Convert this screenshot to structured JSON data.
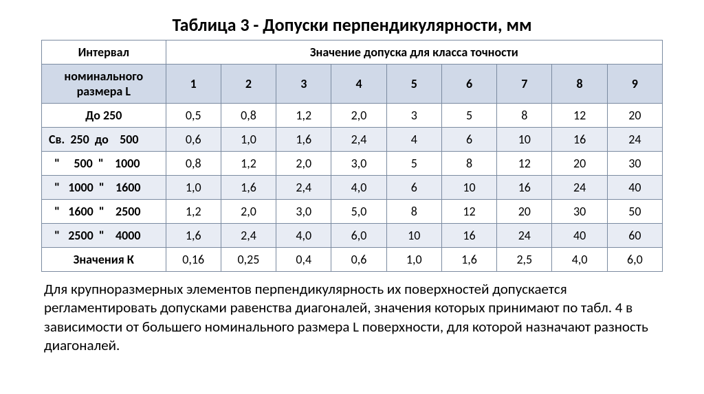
{
  "title": "Таблица 3 - Допуски перпендикулярности, мм",
  "header": {
    "interval": "Интервал",
    "tolerance_span": "Значение допуска для класса точности",
    "nominal_size": "номинального размера L"
  },
  "classes": [
    "1",
    "2",
    "3",
    "4",
    "5",
    "6",
    "7",
    "8",
    "9"
  ],
  "rows": [
    {
      "label": "До   250",
      "vals": [
        "0,5",
        "0,8",
        "1,2",
        "2,0",
        "3",
        "5",
        "8",
        "12",
        "20"
      ],
      "shade": false
    },
    {
      "label": "Св.  250  до    500",
      "vals": [
        "0,6",
        "1,0",
        "1,6",
        "2,4",
        "4",
        "6",
        "10",
        "16",
        "24"
      ],
      "shade": true
    },
    {
      "label": "  \"     500  \"    1000",
      "vals": [
        "0,8",
        "1,2",
        "2,0",
        "3,0",
        "5",
        "8",
        "12",
        "20",
        "30"
      ],
      "shade": false
    },
    {
      "label": "  \"   1000  \"    1600",
      "vals": [
        "1,0",
        "1,6",
        "2,4",
        "4,0",
        "6",
        "10",
        "16",
        "24",
        "40"
      ],
      "shade": true
    },
    {
      "label": "  \"   1600  \"    2500",
      "vals": [
        "1,2",
        "2,0",
        "3,0",
        "5,0",
        "8",
        "12",
        "20",
        "30",
        "50"
      ],
      "shade": false
    },
    {
      "label": "  \"   2500  \"    4000",
      "vals": [
        "1,6",
        "2,4",
        "4,0",
        "6,0",
        "10",
        "16",
        "24",
        "40",
        "60"
      ],
      "shade": true
    }
  ],
  "k_label": "Значения К",
  "k_vals": [
    "0,16",
    "0,25",
    "0,4",
    "0,6",
    "1,0",
    "1,6",
    "2,5",
    "4,0",
    "6,0"
  ],
  "footnote": " Для крупноразмерных элементов перпендикулярность их поверхностей допускается регламентировать допусками равенства диагоналей, значения которых принимают по табл. 4 в зависимости от большего номинального размера L поверхности, для которой назначают разность диагоналей.",
  "colors": {
    "shaded": "#e8ecf4",
    "header2": "#d0d9e8",
    "border": "#7a8aa0",
    "text": "#000000",
    "bg": "#ffffff"
  }
}
